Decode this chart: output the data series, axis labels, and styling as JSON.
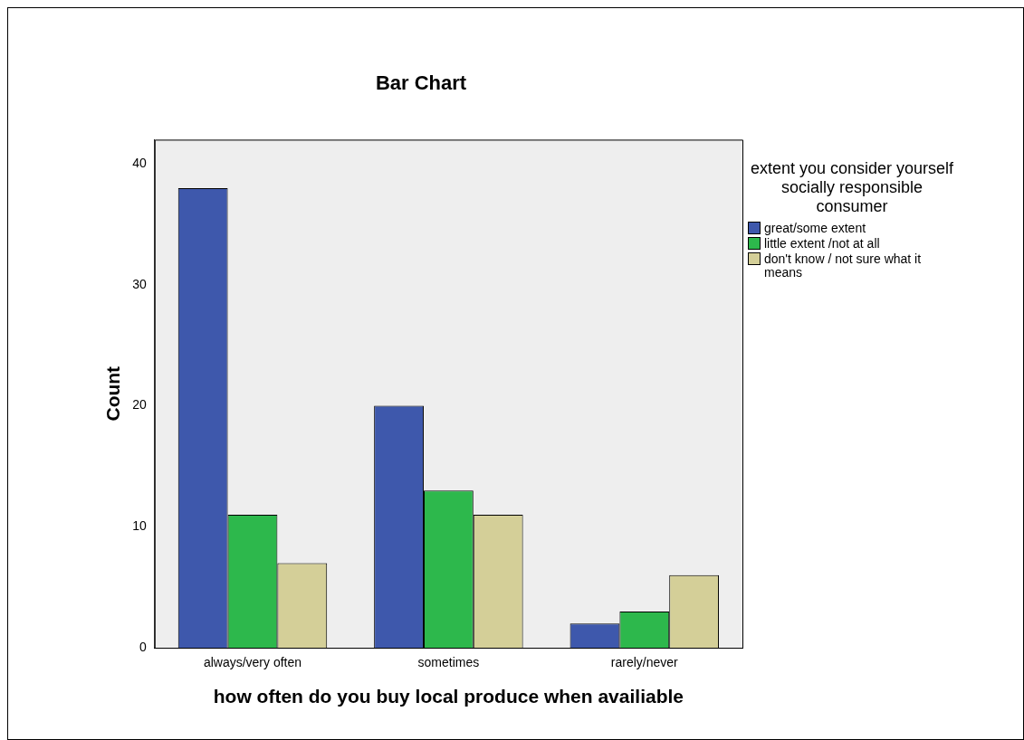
{
  "chart_data": {
    "type": "bar",
    "title": "Bar Chart",
    "xlabel": "how often do you buy local produce when availiable",
    "ylabel": "Count",
    "legend_title": "extent you consider yourself socially responsible consumer",
    "legend": "right",
    "grid": false,
    "categories": [
      "always/very often",
      "sometimes",
      "rarely/never"
    ],
    "series": [
      {
        "name": "great/some extent",
        "color": "#3e58ac",
        "values": [
          38,
          20,
          2
        ]
      },
      {
        "name": "little extent /not at all",
        "color": "#2db84c",
        "values": [
          11,
          13,
          3
        ]
      },
      {
        "name": "don't know / not sure what it means",
        "color": "#d4cf98",
        "values": [
          7,
          11,
          6
        ]
      }
    ],
    "ylim": [
      0,
      42
    ],
    "yticks": [
      0,
      10,
      20,
      30,
      40
    ]
  }
}
